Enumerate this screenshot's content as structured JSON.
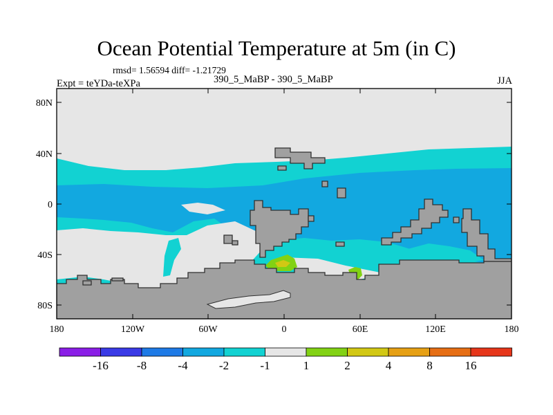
{
  "header": {
    "title": "Ocean Potential Temperature at 5m (in C)",
    "stats": "rmsd= 1.56594 diff= -1.21729",
    "experiment": "Expt = teYDa-teXPa",
    "cases": "390_5_MaBP - 390_5_MaBP",
    "season": "JJA"
  },
  "map": {
    "lat_ticks": [
      "80N",
      "40N",
      "0",
      "40S",
      "80S"
    ],
    "lon_ticks": [
      "180",
      "120W",
      "60W",
      "0",
      "60E",
      "120E",
      "180"
    ]
  },
  "colorbar": {
    "colors": [
      "#8a1ee6",
      "#3a3ae6",
      "#1e7ae6",
      "#12a8e0",
      "#12d2d2",
      "#e6e6e6",
      "#82d214",
      "#d2c814",
      "#e6a014",
      "#e66e14",
      "#e6361a"
    ],
    "labels": [
      "-16",
      "-8",
      "-4",
      "-2",
      "-1",
      "1",
      "2",
      "4",
      "8",
      "16"
    ]
  },
  "legend_colors": {
    "land": "#a0a0a0",
    "near_zero": "#e6e6e6",
    "cyan": "#12d2d2",
    "blue": "#12a8e0",
    "green": "#82d214",
    "yellow": "#d2c814"
  }
}
